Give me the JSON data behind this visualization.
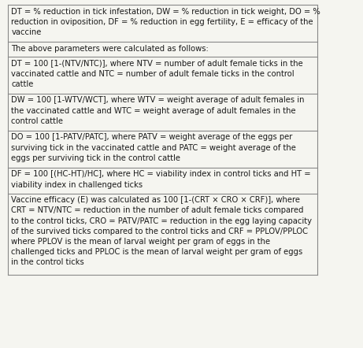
{
  "rows": [
    "DT = % reduction in tick infestation, DW = % reduction in tick weight, DO = %\nreduction in oviposition, DF = % reduction in egg fertility, E = efficacy of the\nvaccine",
    "The above parameters were calculated as follows:",
    "DT = 100 [1-(NTV/NTC)], where NTV = number of adult female ticks in the\nvaccinated cattle and NTC = number of adult female ticks in the control\ncattle",
    "DW = 100 [1-WTV/WCT], where WTV = weight average of adult females in\nthe vaccinated cattle and WTC = weight average of adult females in the\ncontrol cattle",
    "DO = 100 [1-PATV/PATC], where PATV = weight average of the eggs per\nsurviving tick in the vaccinated cattle and PATC = weight average of the\neggs per surviving tick in the control cattle",
    "DF = 100 [(HC-HT)/HC], where HC = viability index in control ticks and HT =\nviability index in challenged ticks",
    "Vaccine efficacy (E) was calculated as 100 [1-(CRT × CRO × CRF)], where\nCRT = NTV/NTC = reduction in the number of adult female ticks compared\nto the control ticks, CRO = PATV/PATC = reduction in the egg laying capacity\nof the survived ticks compared to the control ticks and CRF = PPLOV/PPLOC\nwhere PPLOV is the mean of larval weight per gram of eggs in the\nchallenged ticks and PPLOC is the mean of larval weight per gram of eggs\nin the control ticks"
  ],
  "bg_color": "#f5f5f0",
  "text_color": "#1a1a1a",
  "border_color": "#888888",
  "font_size": 7.2,
  "line_color": "#aaaaaa"
}
